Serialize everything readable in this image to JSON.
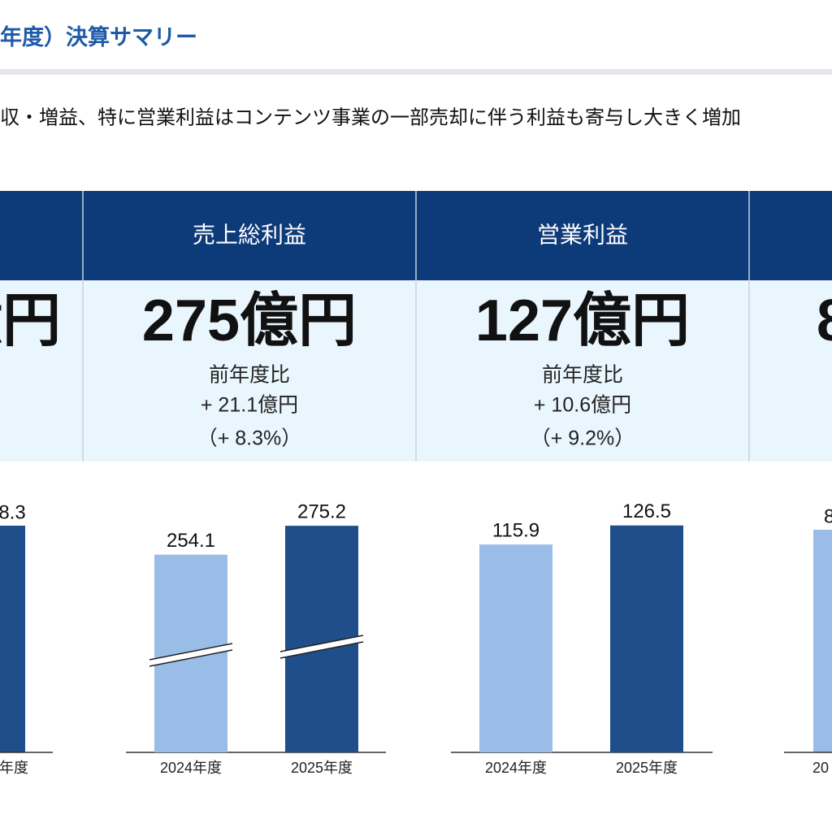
{
  "header": {
    "title": "年度）決算サマリー",
    "subtitle": "収・増益、特に営業利益はコンテンツ事業の一部売却に伴う利益も寄与し大きく増加"
  },
  "panels": [
    {
      "value": "億円"
    },
    {
      "heading": "売上総利益",
      "value": "275億円",
      "compare_label": "前年度比",
      "change": "+ 21.1億円",
      "change_pct": "（+ 8.3%）"
    },
    {
      "heading": "営業利益",
      "value": "127億円",
      "compare_label": "前年度比",
      "change": "+ 10.6億円",
      "change_pct": "（+ 9.2%）"
    },
    {
      "value": "8"
    }
  ],
  "edge_charts": [
    {
      "bar_label": "8.3",
      "category": "年度"
    },
    {
      "bar_label": "8",
      "category": "20"
    }
  ],
  "chart_data": [
    {
      "type": "bar",
      "categories": [
        "2024年度",
        "2025年度"
      ],
      "values": [
        254.1,
        275.2
      ],
      "colors": [
        "#99bde6",
        "#1f4e8a"
      ],
      "ylim": [
        110,
        280
      ],
      "axis_break": true
    },
    {
      "type": "bar",
      "categories": [
        "2024年度",
        "2025年度"
      ],
      "values": [
        115.9,
        126.5
      ],
      "colors": [
        "#99bde6",
        "#1f4e8a"
      ],
      "ylim": [
        0,
        130
      ],
      "axis_break": false
    }
  ]
}
